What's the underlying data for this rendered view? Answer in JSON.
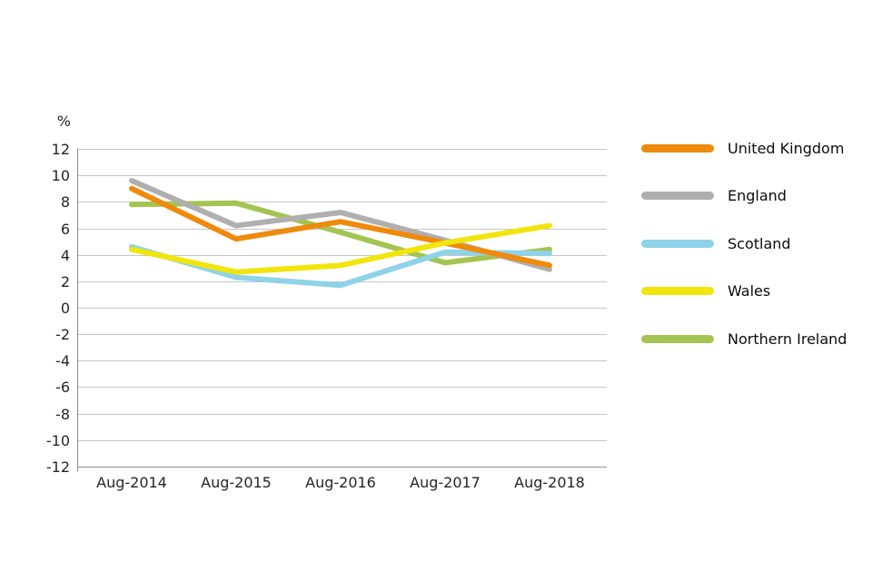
{
  "chart_data": {
    "type": "line",
    "title": "",
    "ylabel": "%",
    "xlabel": "",
    "categories": [
      "Aug-2014",
      "Aug-2015",
      "Aug-2016",
      "Aug-2017",
      "Aug-2018"
    ],
    "series": [
      {
        "name": "United Kingdom",
        "slug": "united-kingdom",
        "color": "#EF8A0C",
        "z": 4,
        "values": [
          9.0,
          5.2,
          6.5,
          4.9,
          3.2
        ]
      },
      {
        "name": "England",
        "slug": "england",
        "color": "#AFAFAF",
        "z": 3,
        "values": [
          9.6,
          6.2,
          7.2,
          5.1,
          2.9
        ]
      },
      {
        "name": "Scotland",
        "slug": "scotland",
        "color": "#8ED3E9",
        "z": 2,
        "values": [
          4.6,
          2.3,
          1.7,
          4.2,
          4.1
        ]
      },
      {
        "name": "Wales",
        "slug": "wales",
        "color": "#F1E50D",
        "z": 5,
        "values": [
          4.4,
          2.7,
          3.2,
          4.9,
          6.2
        ]
      },
      {
        "name": "Northern Ireland",
        "slug": "northern-ireland",
        "color": "#A4C452",
        "z": 1,
        "values": [
          7.8,
          7.9,
          5.7,
          3.4,
          4.4
        ]
      }
    ],
    "ylim": [
      -12,
      12
    ],
    "y_tick_step": 2,
    "y_ticks": [
      12,
      10,
      8,
      6,
      4,
      2,
      0,
      -2,
      -4,
      -6,
      -8,
      -10,
      -12
    ],
    "grid": true,
    "legend_position": "right",
    "background_color": "#FFFFFF",
    "gridline_color": "#C6C6C6",
    "axis_line_color": "#8E8E8E",
    "tick_text_color": "#262626"
  }
}
